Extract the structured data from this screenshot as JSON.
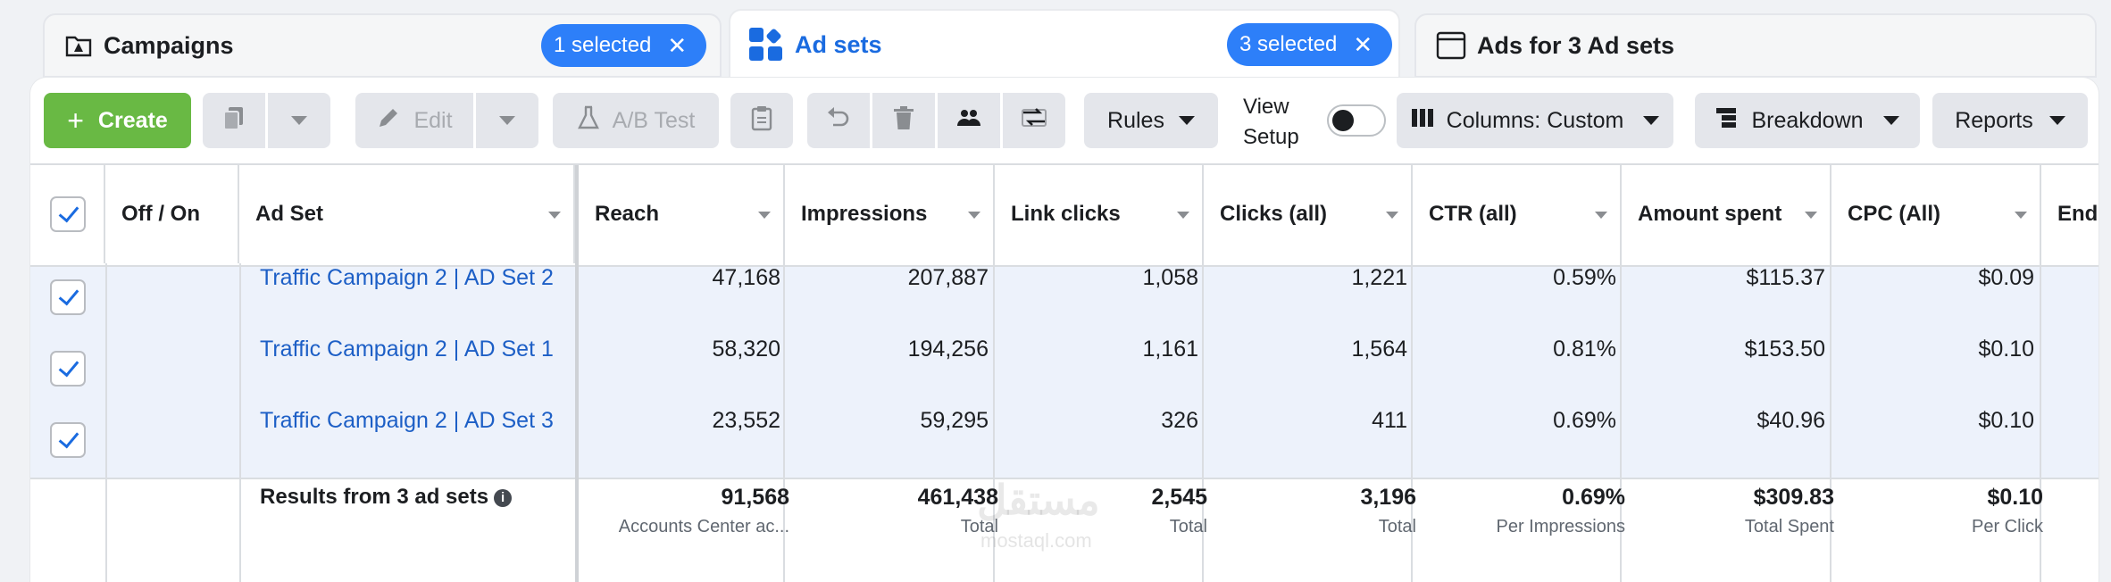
{
  "tabs": [
    {
      "title": "Campaigns",
      "badge": "1 selected"
    },
    {
      "title": "Ad sets",
      "badge": "3 selected"
    },
    {
      "title": "Ads for 3 Ad sets"
    }
  ],
  "toolbar": {
    "create": "Create",
    "edit": "Edit",
    "ab_test": "A/B Test",
    "rules": "Rules",
    "view_setup_line1": "View",
    "view_setup_line2": "Setup",
    "columns": "Columns: Custom",
    "breakdown": "Breakdown",
    "reports": "Reports"
  },
  "table": {
    "columns": [
      "Off / On",
      "Ad Set",
      "Reach",
      "Impressions",
      "Link clicks",
      "Clicks (all)",
      "CTR (all)",
      "Amount spent",
      "CPC (All)",
      "Ends"
    ],
    "rows": [
      {
        "name": "Traffic Campaign 2 | AD Set 2",
        "reach": "47,168",
        "impressions": "207,887",
        "link_clicks": "1,058",
        "clicks_all": "1,221",
        "ctr": "0.59%",
        "spent": "$115.37",
        "cpc": "$0.09"
      },
      {
        "name": "Traffic Campaign 2 | AD Set 1",
        "reach": "58,320",
        "impressions": "194,256",
        "link_clicks": "1,161",
        "clicks_all": "1,564",
        "ctr": "0.81%",
        "spent": "$153.50",
        "cpc": "$0.10"
      },
      {
        "name": "Traffic Campaign 2 | AD Set 3",
        "reach": "23,552",
        "impressions": "59,295",
        "link_clicks": "326",
        "clicks_all": "411",
        "ctr": "0.69%",
        "spent": "$40.96",
        "cpc": "$0.10"
      }
    ],
    "summary": {
      "label": "Results from 3 ad sets",
      "reach": "91,568",
      "reach_sub": "Accounts Center ac...",
      "impressions": "461,438",
      "impressions_sub": "Total",
      "link_clicks": "2,545",
      "link_clicks_sub": "Total",
      "clicks_all": "3,196",
      "clicks_all_sub": "Total",
      "ctr": "0.69%",
      "ctr_sub": "Per Impressions",
      "spent": "$309.83",
      "spent_sub": "Total Spent",
      "cpc": "$0.10",
      "cpc_sub": "Per Click"
    }
  },
  "watermark": {
    "arabic": "مستقل",
    "latin": "mostaql.com"
  },
  "colors": {
    "accent": "#1a6be0",
    "badge": "#2d7ff9",
    "create": "#69b944",
    "selected_row": "#edf2fb"
  }
}
